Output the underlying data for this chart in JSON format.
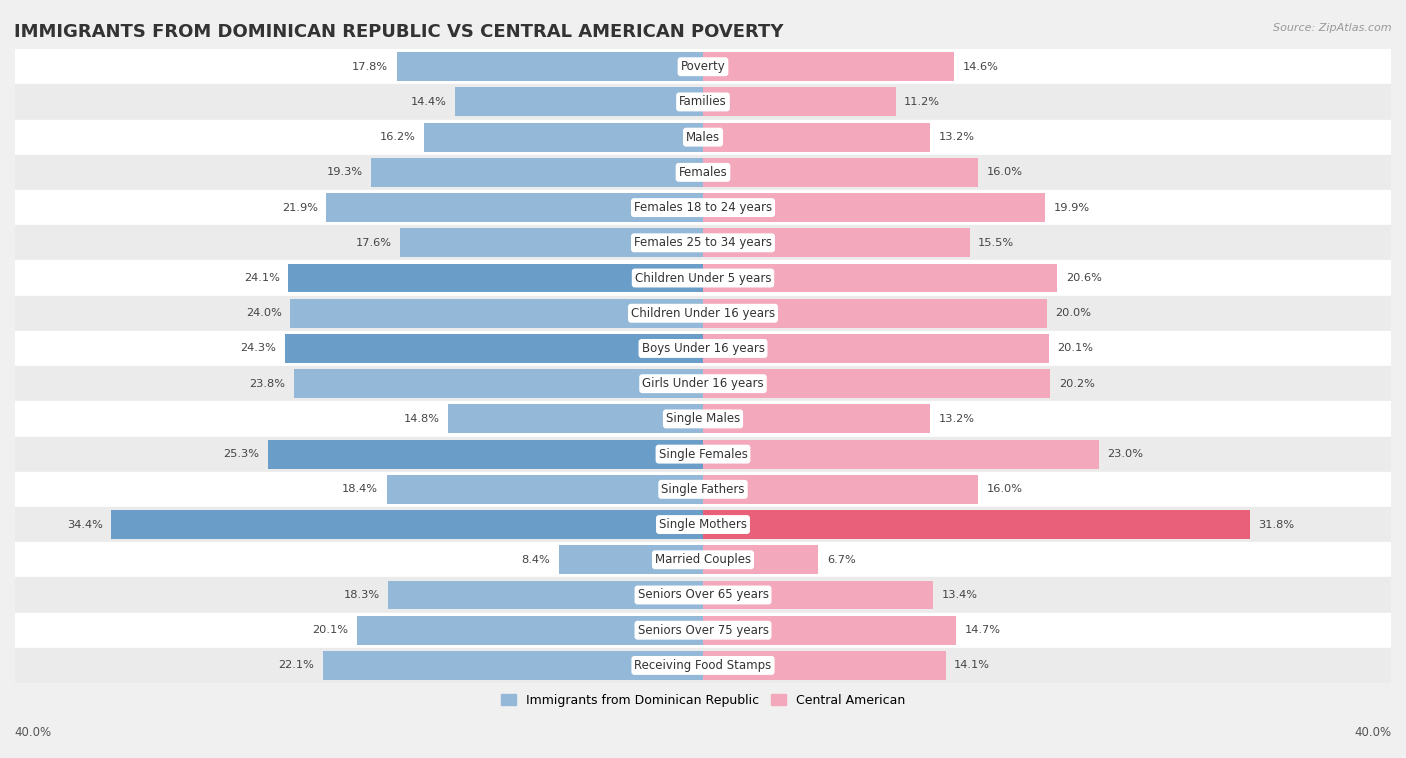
{
  "title": "IMMIGRANTS FROM DOMINICAN REPUBLIC VS CENTRAL AMERICAN POVERTY",
  "source": "Source: ZipAtlas.com",
  "categories": [
    "Poverty",
    "Families",
    "Males",
    "Females",
    "Females 18 to 24 years",
    "Females 25 to 34 years",
    "Children Under 5 years",
    "Children Under 16 years",
    "Boys Under 16 years",
    "Girls Under 16 years",
    "Single Males",
    "Single Females",
    "Single Fathers",
    "Single Mothers",
    "Married Couples",
    "Seniors Over 65 years",
    "Seniors Over 75 years",
    "Receiving Food Stamps"
  ],
  "dominican": [
    17.8,
    14.4,
    16.2,
    19.3,
    21.9,
    17.6,
    24.1,
    24.0,
    24.3,
    23.8,
    14.8,
    25.3,
    18.4,
    34.4,
    8.4,
    18.3,
    20.1,
    22.1
  ],
  "central_american": [
    14.6,
    11.2,
    13.2,
    16.0,
    19.9,
    15.5,
    20.6,
    20.0,
    20.1,
    20.2,
    13.2,
    23.0,
    16.0,
    31.8,
    6.7,
    13.4,
    14.7,
    14.1
  ],
  "dominican_color": "#94b8d8",
  "central_american_color": "#f4a8bc",
  "dominican_highlight_indices": [
    6,
    8,
    11,
    13
  ],
  "central_american_highlight_indices": [
    13
  ],
  "dominican_highlight_color": "#6a9ec8",
  "central_american_highlight_color": "#e8607a",
  "row_color_even": "#ffffff",
  "row_color_odd": "#ebebeb",
  "background_color": "#f0f0f0",
  "xlim": 40.0,
  "bar_height": 0.82,
  "legend_label_dominican": "Immigrants from Dominican Republic",
  "legend_label_central": "Central American",
  "title_fontsize": 13,
  "label_fontsize": 8.5,
  "value_fontsize": 8.2,
  "axis_tick_fontsize": 8.5
}
